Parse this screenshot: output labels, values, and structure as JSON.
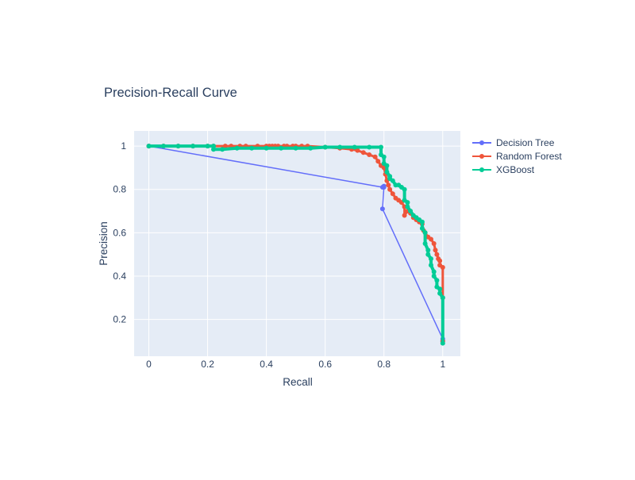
{
  "chart_data": {
    "type": "line",
    "title": "Precision-Recall Curve",
    "xlabel": "Recall",
    "ylabel": "Precision",
    "xlim": [
      -0.05,
      1.06
    ],
    "ylim": [
      0.03,
      1.07
    ],
    "x_ticks": [
      {
        "value": 0,
        "label": "0"
      },
      {
        "value": 0.2,
        "label": "0.2"
      },
      {
        "value": 0.4,
        "label": "0.4"
      },
      {
        "value": 0.6,
        "label": "0.6"
      },
      {
        "value": 0.8,
        "label": "0.8"
      },
      {
        "value": 1,
        "label": "1"
      }
    ],
    "y_ticks": [
      {
        "value": 0.2,
        "label": "0.2"
      },
      {
        "value": 0.4,
        "label": "0.4"
      },
      {
        "value": 0.6,
        "label": "0.6"
      },
      {
        "value": 0.8,
        "label": "0.8"
      },
      {
        "value": 1,
        "label": "1"
      }
    ],
    "grid": true,
    "legend_position": "top-right",
    "background_color": "#e5ecf6",
    "series": [
      {
        "name": "Decision Tree",
        "color": "#636efa",
        "line_width": 1.5,
        "marker_size": 3,
        "x": [
          0,
          0.795,
          0.8,
          0.8,
          0.795,
          1,
          1
        ],
        "y": [
          1,
          0.81,
          0.815,
          0.81,
          0.71,
          0.11,
          0.1
        ]
      },
      {
        "name": "Random Forest",
        "color": "#ef553b",
        "line_width": 3,
        "marker_size": 3,
        "x": [
          0,
          0.05,
          0.1,
          0.15,
          0.2,
          0.22,
          0.26,
          0.28,
          0.31,
          0.33,
          0.37,
          0.4,
          0.41,
          0.42,
          0.43,
          0.44,
          0.46,
          0.47,
          0.49,
          0.5,
          0.52,
          0.54,
          0.6,
          0.65,
          0.69,
          0.71,
          0.73,
          0.75,
          0.77,
          0.78,
          0.79,
          0.8,
          0.805,
          0.81,
          0.815,
          0.82,
          0.83,
          0.84,
          0.85,
          0.86,
          0.87,
          0.87,
          0.88,
          0.89,
          0.9,
          0.91,
          0.92,
          0.93,
          0.935,
          0.94,
          0.95,
          0.96,
          0.97,
          0.975,
          0.98,
          0.985,
          0.99,
          0.99,
          1.0,
          1.0,
          1.0
        ],
        "y": [
          1,
          1,
          1,
          1,
          1,
          1,
          1,
          1,
          1,
          1,
          1,
          1,
          1,
          1,
          1,
          1,
          1,
          1,
          1,
          1,
          1,
          1,
          0.995,
          0.99,
          0.985,
          0.98,
          0.97,
          0.96,
          0.95,
          0.93,
          0.91,
          0.9,
          0.87,
          0.84,
          0.82,
          0.8,
          0.78,
          0.76,
          0.75,
          0.74,
          0.72,
          0.68,
          0.7,
          0.69,
          0.67,
          0.66,
          0.65,
          0.64,
          0.61,
          0.6,
          0.58,
          0.57,
          0.55,
          0.52,
          0.5,
          0.48,
          0.47,
          0.45,
          0.44,
          0.3,
          0.1
        ]
      },
      {
        "name": "XGBoost",
        "color": "#00cc96",
        "line_width": 4,
        "marker_size": 3,
        "x": [
          0,
          0.05,
          0.1,
          0.15,
          0.2,
          0.22,
          0.22,
          0.25,
          0.3,
          0.35,
          0.4,
          0.45,
          0.5,
          0.55,
          0.6,
          0.65,
          0.7,
          0.75,
          0.79,
          0.79,
          0.8,
          0.8,
          0.81,
          0.81,
          0.82,
          0.82,
          0.83,
          0.84,
          0.85,
          0.86,
          0.87,
          0.87,
          0.88,
          0.88,
          0.89,
          0.9,
          0.91,
          0.92,
          0.93,
          0.93,
          0.94,
          0.94,
          0.95,
          0.95,
          0.96,
          0.96,
          0.97,
          0.97,
          0.98,
          0.98,
          0.99,
          0.99,
          1.0,
          1.0
        ],
        "y": [
          1,
          1,
          1,
          1,
          1,
          1,
          0.985,
          0.985,
          0.99,
          0.99,
          0.99,
          0.99,
          0.99,
          0.99,
          0.995,
          0.995,
          0.995,
          0.995,
          0.995,
          0.96,
          0.95,
          0.92,
          0.91,
          0.88,
          0.86,
          0.85,
          0.84,
          0.82,
          0.82,
          0.81,
          0.8,
          0.75,
          0.74,
          0.72,
          0.7,
          0.68,
          0.67,
          0.66,
          0.65,
          0.62,
          0.6,
          0.55,
          0.52,
          0.5,
          0.48,
          0.45,
          0.42,
          0.4,
          0.38,
          0.35,
          0.34,
          0.32,
          0.3,
          0.09
        ]
      }
    ]
  }
}
